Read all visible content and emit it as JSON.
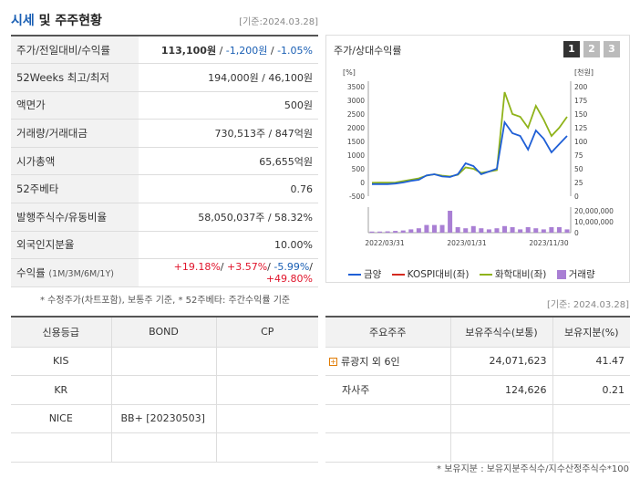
{
  "header": {
    "title_blue": "시세",
    "title_rest": " 및 주주현황",
    "date": "[기준:2024.03.28]"
  },
  "price_table": [
    {
      "label": "주가/전일대비/수익률",
      "v1": "113,100원",
      "v2": "-1,200원",
      "v3": "-1.05%"
    },
    {
      "label": "52Weeks 최고/최저",
      "value": "194,000원 / 46,100원"
    },
    {
      "label": "액면가",
      "value": "500원"
    },
    {
      "label": "거래량/거래대금",
      "value": "730,513주 / 847억원"
    },
    {
      "label": "시가총액",
      "value": "65,655억원"
    },
    {
      "label": "52주베타",
      "value": "0.76"
    },
    {
      "label": "발행주식수/유동비율",
      "value": "58,050,037주 / 58.32%"
    },
    {
      "label": "외국인지분율",
      "value": "10.00%"
    },
    {
      "label": "수익률",
      "sub": "(1M/3M/6M/1Y)",
      "r1": "+19.18%",
      "r2": "+3.57%",
      "r3": "-5.99%",
      "r4": "+49.80%"
    }
  ],
  "note1": "* 수정주가(차트포함), 보통주 기준, * 52주베타: 주간수익률 기준",
  "chart": {
    "title": "주가/상대수익률",
    "tabs": [
      "1",
      "2",
      "3"
    ],
    "left_unit": "[%]",
    "right_unit": "[천원]",
    "left_ticks": [
      "3500",
      "3000",
      "2500",
      "2000",
      "1500",
      "1000",
      "500",
      "0",
      "-500"
    ],
    "right_ticks": [
      "200",
      "175",
      "150",
      "125",
      "100",
      "75",
      "50",
      "25",
      "0"
    ],
    "vol_ticks": [
      "20,000,000",
      "10,000,000",
      "0"
    ],
    "x_ticks": [
      "2022/03/31",
      "2023/01/31",
      "2023/11/30"
    ],
    "legend": [
      {
        "name": "금양",
        "color": "#1f5fd6"
      },
      {
        "name": "KOSPI대비(좌)",
        "color": "#d42a1f"
      },
      {
        "name": "화학대비(좌)",
        "color": "#8fb31a"
      },
      {
        "name": "거래량",
        "color": "#a97fd4"
      }
    ]
  },
  "chart_data": {
    "type": "line",
    "y_left_range": [
      -500,
      3500
    ],
    "y_right_range": [
      0,
      200
    ],
    "price_thousand_won": [
      22,
      22,
      22,
      23,
      25,
      28,
      30,
      38,
      40,
      36,
      35,
      40,
      60,
      55,
      40,
      45,
      50,
      135,
      115,
      110,
      85,
      120,
      105,
      80,
      95,
      110
    ],
    "relative_chemical_pct": [
      -10,
      -8,
      -5,
      0,
      50,
      100,
      150,
      250,
      300,
      250,
      220,
      280,
      550,
      500,
      350,
      400,
      450,
      3300,
      2500,
      2400,
      2000,
      2800,
      2300,
      1700,
      2000,
      2400
    ],
    "volume_relative": [
      0.05,
      0.05,
      0.06,
      0.08,
      0.1,
      0.15,
      0.2,
      0.35,
      0.35,
      0.35,
      1.0,
      0.25,
      0.2,
      0.3,
      0.2,
      0.15,
      0.2,
      0.3,
      0.25,
      0.15,
      0.25,
      0.2,
      0.15,
      0.25,
      0.25,
      0.15
    ]
  },
  "date2": "[기준: 2024.03.28]",
  "credit_table": {
    "headers": [
      "신용등급",
      "BOND",
      "CP"
    ],
    "rows": [
      [
        "KIS",
        "",
        ""
      ],
      [
        "KR",
        "",
        ""
      ],
      [
        "NICE",
        "BB+   [20230503]",
        ""
      ],
      [
        "",
        "",
        ""
      ]
    ]
  },
  "holder_table": {
    "headers": [
      "주요주주",
      "보유주식수(보통)",
      "보유지분(%)"
    ],
    "rows": [
      {
        "name": "류광지 외 6인",
        "shares": "24,071,623",
        "pct": "41.47",
        "expand": true
      },
      {
        "name": "자사주",
        "shares": "124,626",
        "pct": "0.21",
        "expand": false
      },
      {
        "name": "",
        "shares": "",
        "pct": ""
      },
      {
        "name": "",
        "shares": "",
        "pct": ""
      }
    ]
  },
  "note2": "* 보유지분 : 보유지분주식수/지수산정주식수*100"
}
